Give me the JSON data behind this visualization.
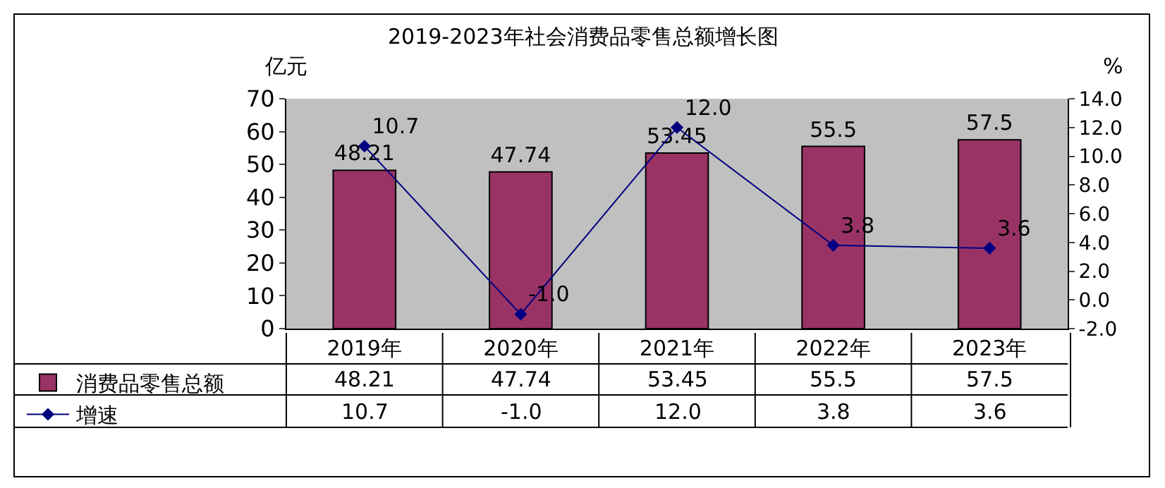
{
  "chart_data": {
    "type": "bar",
    "title": "2019-2023年社会消费品零售总额增长图",
    "ylabel": "亿元",
    "y2label": "%",
    "categories": [
      "2019年",
      "2020年",
      "2021年",
      "2022年",
      "2023年"
    ],
    "series": [
      {
        "name": "消费品零售总额",
        "color": "#993366",
        "values": [
          48.21,
          47.74,
          53.45,
          55.5,
          57.5
        ],
        "value_labels": [
          "48.21",
          "47.74",
          "53.45",
          "55.5",
          "57.5"
        ]
      },
      {
        "name": "增速",
        "type": "line",
        "axis": "y2",
        "color": "#000080",
        "marker": "diamond",
        "values": [
          10.7,
          -1.0,
          12.0,
          3.8,
          3.6
        ],
        "value_labels": [
          "10.7",
          "-1.0",
          "12.0",
          "3.8",
          "3.6"
        ]
      }
    ],
    "ylim": [
      0,
      70
    ],
    "yticks": [
      0,
      10,
      20,
      30,
      40,
      50,
      60,
      70
    ],
    "y2lim": [
      -2,
      14
    ],
    "y2ticks": [
      {
        "value": -2,
        "label": "-2.0"
      },
      {
        "value": 0,
        "label": "0.0"
      },
      {
        "value": 2,
        "label": "2.0"
      },
      {
        "value": 4,
        "label": "4.0"
      },
      {
        "value": 6,
        "label": "6.0"
      },
      {
        "value": 8,
        "label": "8.0"
      },
      {
        "value": 10,
        "label": "10.0"
      },
      {
        "value": 12,
        "label": "12.0"
      },
      {
        "value": 14,
        "label": "14.0"
      }
    ],
    "legend": "bottom"
  }
}
